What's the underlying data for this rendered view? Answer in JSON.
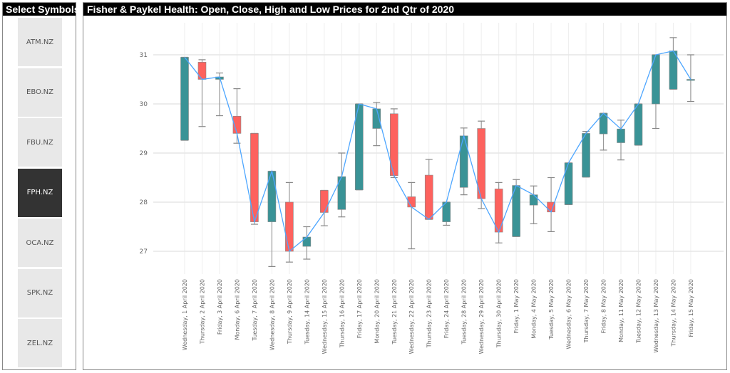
{
  "sidebar": {
    "title": "Select Symbols",
    "items": [
      {
        "label": "ATM.NZ",
        "selected": false
      },
      {
        "label": "EBO.NZ",
        "selected": false
      },
      {
        "label": "FBU.NZ",
        "selected": false
      },
      {
        "label": "FPH.NZ",
        "selected": true
      },
      {
        "label": "OCA.NZ",
        "selected": false
      },
      {
        "label": "SPK.NZ",
        "selected": false
      },
      {
        "label": "ZEL.NZ",
        "selected": false
      }
    ]
  },
  "chart_data": {
    "type": "candlestick",
    "title": "Fisher & Paykel Health: Open, Close, High and Low Prices for 2nd Qtr of 2020",
    "ylim": [
      26.6,
      31.5
    ],
    "yticks": [
      27,
      28,
      29,
      30,
      31
    ],
    "grid": true,
    "colors": {
      "up": "#3a9396",
      "down": "#fd625e",
      "close_line": "#4da6ff",
      "wick": "#999999"
    },
    "categories": [
      "Wednesday, 1 April 2020",
      "Thursday, 2 April 2020",
      "Friday, 3 April 2020",
      "Monday, 6 April 2020",
      "Tuesday, 7 April 2020",
      "Wednesday, 8 April 2020",
      "Thursday, 9 April 2020",
      "Tuesday, 14 April 2020",
      "Wednesday, 15 April 2020",
      "Thursday, 16 April 2020",
      "Friday, 17 April 2020",
      "Monday, 20 April 2020",
      "Tuesday, 21 April 2020",
      "Wednesday, 22 April 2020",
      "Thursday, 23 April 2020",
      "Friday, 24 April 2020",
      "Tuesday, 28 April 2020",
      "Wednesday, 29 April 2020",
      "Thursday, 30 April 2020",
      "Friday, 1 May 2020",
      "Monday, 4 May 2020",
      "Tuesday, 5 May 2020",
      "Wednesday, 6 May 2020",
      "Thursday, 7 May 2020",
      "Friday, 8 May 2020",
      "Monday, 11 May 2020",
      "Tuesday, 12 May 2020",
      "Wednesday, 13 May 2020",
      "Thursday, 14 May 2020",
      "Friday, 15 May 2020"
    ],
    "open": [
      29.26,
      30.85,
      30.5,
      29.75,
      29.4,
      27.6,
      28.0,
      27.1,
      28.24,
      27.85,
      28.25,
      29.5,
      29.8,
      28.11,
      28.55,
      27.6,
      28.3,
      29.5,
      28.27,
      27.3,
      27.94,
      28.0,
      27.95,
      28.51,
      29.39,
      29.21,
      29.16,
      30.0,
      30.3,
      30.5
    ],
    "high": [
      30.95,
      30.9,
      30.63,
      30.31,
      29.4,
      28.63,
      28.4,
      27.5,
      28.24,
      29.0,
      30.0,
      30.03,
      29.9,
      28.4,
      28.87,
      28.0,
      29.51,
      29.65,
      28.4,
      28.46,
      28.33,
      28.5,
      28.8,
      29.44,
      29.81,
      29.67,
      30.0,
      31.0,
      31.35,
      31.0
    ],
    "low": [
      29.26,
      29.54,
      29.76,
      29.2,
      27.55,
      26.69,
      26.78,
      26.84,
      27.52,
      27.7,
      28.25,
      29.15,
      28.5,
      27.05,
      27.65,
      27.53,
      28.15,
      27.87,
      27.17,
      27.3,
      27.56,
      27.4,
      27.95,
      28.51,
      29.06,
      28.86,
      29.16,
      29.5,
      30.3,
      30.05
    ],
    "close": [
      30.95,
      30.5,
      30.55,
      29.4,
      27.6,
      28.63,
      27.0,
      27.29,
      27.79,
      28.52,
      30.0,
      29.9,
      28.54,
      27.9,
      27.65,
      28.0,
      29.35,
      28.07,
      27.39,
      28.34,
      28.15,
      27.8,
      28.8,
      29.4,
      29.81,
      29.49,
      30.0,
      31.0,
      31.08,
      30.5
    ]
  }
}
